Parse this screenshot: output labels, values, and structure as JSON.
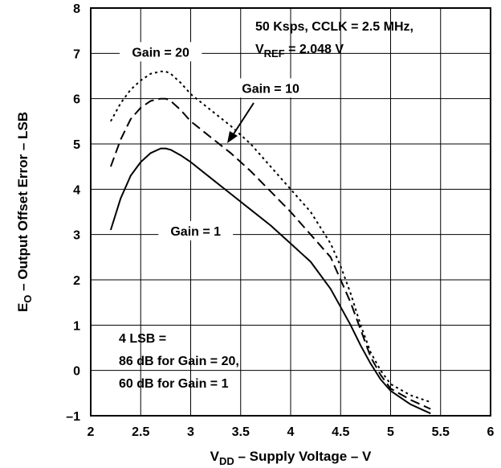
{
  "chart_data": {
    "type": "line",
    "title": "",
    "xlabel": {
      "prefix": "V",
      "sub": "DD",
      "suffix": " – Supply Voltage – V"
    },
    "ylabel": {
      "prefix": "E",
      "sub": "O",
      "suffix": " – Output Offset Error – LSB"
    },
    "xlim": [
      2,
      6
    ],
    "ylim": [
      -1,
      8
    ],
    "xticks": [
      "2",
      "2.5",
      "3",
      "3.5",
      "4",
      "4.5",
      "5",
      "5.5",
      "6"
    ],
    "yticks": [
      "–1",
      "0",
      "1",
      "2",
      "3",
      "4",
      "5",
      "6",
      "7",
      "8"
    ],
    "grid": true,
    "legend": "none",
    "series": [
      {
        "name": "Gain = 20",
        "style": "dotted",
        "x": [
          2.2,
          2.3,
          2.4,
          2.5,
          2.6,
          2.7,
          2.75,
          2.8,
          2.9,
          3.0,
          3.2,
          3.4,
          3.6,
          3.8,
          4.0,
          4.2,
          4.4,
          4.5,
          4.6,
          4.7,
          4.8,
          4.9,
          5.0,
          5.2,
          5.4
        ],
        "y": [
          5.5,
          5.9,
          6.2,
          6.4,
          6.55,
          6.6,
          6.6,
          6.55,
          6.35,
          6.1,
          5.75,
          5.4,
          5.0,
          4.5,
          4.0,
          3.5,
          2.8,
          2.3,
          1.7,
          1.0,
          0.4,
          0.0,
          -0.3,
          -0.55,
          -0.7
        ]
      },
      {
        "name": "Gain = 10",
        "style": "dashed",
        "x": [
          2.2,
          2.3,
          2.4,
          2.5,
          2.6,
          2.7,
          2.75,
          2.8,
          2.9,
          3.0,
          3.2,
          3.4,
          3.6,
          3.8,
          4.0,
          4.2,
          4.4,
          4.5,
          4.6,
          4.7,
          4.8,
          4.9,
          5.0,
          5.2,
          5.4
        ],
        "y": [
          4.5,
          5.1,
          5.55,
          5.8,
          5.95,
          6.0,
          6.0,
          5.95,
          5.75,
          5.5,
          5.15,
          4.8,
          4.4,
          3.95,
          3.5,
          3.0,
          2.5,
          2.0,
          1.5,
          0.9,
          0.3,
          -0.1,
          -0.4,
          -0.65,
          -0.85
        ]
      },
      {
        "name": "Gain = 1",
        "style": "solid",
        "x": [
          2.2,
          2.3,
          2.4,
          2.5,
          2.6,
          2.7,
          2.75,
          2.8,
          2.9,
          3.0,
          3.2,
          3.4,
          3.6,
          3.8,
          4.0,
          4.2,
          4.4,
          4.5,
          4.6,
          4.7,
          4.8,
          4.9,
          5.0,
          5.2,
          5.4
        ],
        "y": [
          3.1,
          3.8,
          4.3,
          4.6,
          4.8,
          4.9,
          4.9,
          4.87,
          4.75,
          4.6,
          4.25,
          3.9,
          3.55,
          3.2,
          2.8,
          2.4,
          1.8,
          1.4,
          1.0,
          0.55,
          0.15,
          -0.2,
          -0.45,
          -0.75,
          -0.95
        ]
      }
    ],
    "annotations": [
      {
        "name": "label-gain-20",
        "text": "Gain = 20",
        "x": 2.7,
        "y": 7.0
      },
      {
        "name": "label-gain-10",
        "text": "Gain = 10",
        "x": 3.8,
        "y": 6.2
      },
      {
        "name": "label-gain-1",
        "text": "Gain = 1",
        "x": 3.05,
        "y": 3.05
      }
    ],
    "conditions": {
      "line1": "50 Ksps, CCLK = 2.5 MHz,",
      "line2_prefix": "V",
      "line2_sub": "REF",
      "line2_suffix": " = 2.048 V"
    },
    "note": [
      "4 LSB =",
      "86 dB for Gain = 20,",
      "60 dB for Gain = 1"
    ]
  }
}
